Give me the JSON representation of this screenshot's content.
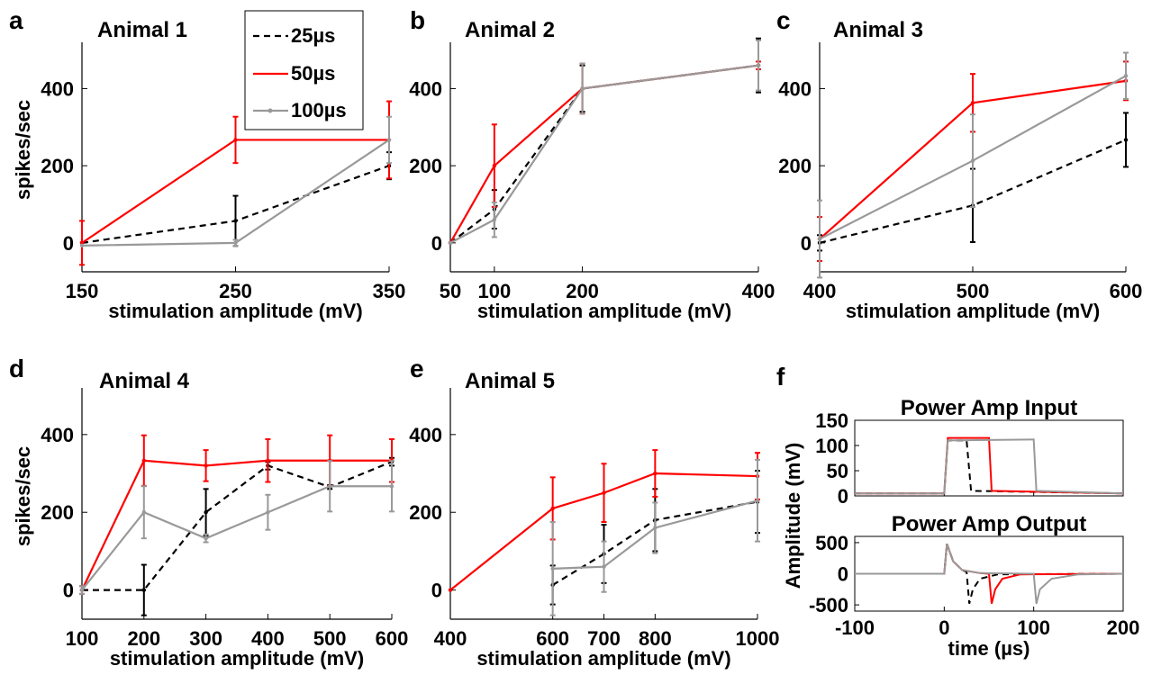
{
  "series_styles": {
    "25µs": {
      "color": "#000000",
      "dash": "7,5"
    },
    "50µs": {
      "color": "#ff0000",
      "dash": ""
    },
    "100µs": {
      "color": "#999999",
      "dash": ""
    }
  },
  "legend": [
    "25µs",
    "50µs",
    "100µs"
  ],
  "chart_data": [
    {
      "panel_label": "a",
      "title": "Animal 1",
      "type": "line",
      "xlabel": "stimulation amplitude (mV)",
      "ylabel": "spikes/sec",
      "xlim": [
        150,
        350
      ],
      "ylim": [
        -75,
        520
      ],
      "xticks": [
        150,
        250,
        350
      ],
      "yticks": [
        0,
        200,
        400
      ],
      "series": [
        {
          "name": "25µs",
          "x": [
            150,
            250,
            350
          ],
          "y": [
            0,
            57,
            200
          ],
          "err": [
            0,
            65,
            35
          ]
        },
        {
          "name": "50µs",
          "x": [
            150,
            250,
            350
          ],
          "y": [
            0,
            267,
            267
          ],
          "err": [
            57,
            60,
            100
          ]
        },
        {
          "name": "100µs",
          "x": [
            150,
            250,
            350
          ],
          "y": [
            -7,
            0,
            267
          ],
          "err": [
            0,
            8,
            60
          ]
        }
      ]
    },
    {
      "panel_label": "b",
      "title": "Animal 2",
      "type": "line",
      "xlabel": "stimulation amplitude (mV)",
      "ylabel": "",
      "xlim": [
        50,
        400
      ],
      "ylim": [
        -75,
        520
      ],
      "xticks": [
        50,
        100,
        200,
        400
      ],
      "yticks": [
        0,
        200,
        400
      ],
      "series": [
        {
          "name": "25µs",
          "x": [
            50,
            100,
            200,
            400
          ],
          "y": [
            0,
            87,
            400,
            460
          ],
          "err": [
            0,
            50,
            60,
            70
          ]
        },
        {
          "name": "50µs",
          "x": [
            50,
            100,
            200,
            400
          ],
          "y": [
            0,
            200,
            400,
            460
          ],
          "err": [
            0,
            107,
            65,
            10
          ]
        },
        {
          "name": "100µs",
          "x": [
            50,
            100,
            200,
            400
          ],
          "y": [
            0,
            60,
            400,
            460
          ],
          "err": [
            0,
            45,
            65,
            65
          ]
        }
      ]
    },
    {
      "panel_label": "c",
      "title": "Animal 3",
      "type": "line",
      "xlabel": "stimulation amplitude (mV)",
      "ylabel": "",
      "xlim": [
        400,
        600
      ],
      "ylim": [
        -75,
        520
      ],
      "xticks": [
        400,
        500,
        600
      ],
      "yticks": [
        0,
        200,
        400
      ],
      "series": [
        {
          "name": "25µs",
          "x": [
            400,
            500,
            600
          ],
          "y": [
            0,
            97,
            267
          ],
          "err": [
            20,
            95,
            70
          ]
        },
        {
          "name": "50µs",
          "x": [
            400,
            500,
            600
          ],
          "y": [
            10,
            363,
            420
          ],
          "err": [
            57,
            75,
            50
          ]
        },
        {
          "name": "100µs",
          "x": [
            400,
            500,
            600
          ],
          "y": [
            10,
            213,
            433
          ],
          "err": [
            100,
            120,
            60
          ]
        }
      ]
    },
    {
      "panel_label": "d",
      "title": "Animal 4",
      "type": "line",
      "xlabel": "stimulation amplitude (mV)",
      "ylabel": "spikes/sec",
      "xlim": [
        100,
        600
      ],
      "ylim": [
        -75,
        520
      ],
      "xticks": [
        100,
        200,
        300,
        400,
        500,
        600
      ],
      "yticks": [
        0,
        200,
        400
      ],
      "series": [
        {
          "name": "25µs",
          "x": [
            100,
            200,
            300,
            400,
            500,
            600
          ],
          "y": [
            0,
            0,
            200,
            320,
            265,
            330
          ],
          "err": [
            10,
            65,
            60,
            10,
            5,
            10
          ]
        },
        {
          "name": "50µs",
          "x": [
            100,
            200,
            300,
            400,
            500,
            600
          ],
          "y": [
            0,
            333,
            320,
            333,
            333,
            333
          ],
          "err": [
            10,
            65,
            40,
            55,
            65,
            55
          ]
        },
        {
          "name": "100µs",
          "x": [
            100,
            200,
            300,
            400,
            500,
            600
          ],
          "y": [
            0,
            200,
            133,
            200,
            267,
            267
          ],
          "err": [
            10,
            67,
            10,
            45,
            65,
            65
          ]
        }
      ]
    },
    {
      "panel_label": "e",
      "title": "Animal 5",
      "type": "line",
      "xlabel": "stimulation amplitude (mV)",
      "ylabel": "",
      "xlim": [
        400,
        1000
      ],
      "ylim": [
        -75,
        520
      ],
      "xticks": [
        400,
        600,
        700,
        800,
        1000
      ],
      "yticks": [
        0,
        200,
        400
      ],
      "series": [
        {
          "name": "25µs",
          "x": [
            600,
            700,
            800,
            1000
          ],
          "y": [
            13,
            93,
            180,
            227
          ],
          "err": [
            50,
            75,
            80,
            80
          ]
        },
        {
          "name": "50µs",
          "x": [
            400,
            600,
            700,
            800,
            1000
          ],
          "y": [
            0,
            210,
            250,
            300,
            293
          ],
          "err": [
            0,
            80,
            75,
            60,
            60
          ]
        },
        {
          "name": "100µs",
          "x": [
            600,
            700,
            800,
            1000
          ],
          "y": [
            55,
            60,
            160,
            230
          ],
          "err": [
            120,
            65,
            65,
            105
          ]
        }
      ]
    },
    {
      "panel_label": "f",
      "type": "line",
      "xlabel": "time (µs)",
      "ylabel": "Amplitude (mV)",
      "xlim": [
        -100,
        200
      ],
      "xticks": [
        -100,
        0,
        100,
        200
      ],
      "subplots": [
        {
          "title": "Power Amp Input",
          "ylim": [
            0,
            150
          ],
          "yticks": [
            0,
            50,
            100,
            150
          ],
          "series": [
            {
              "name": "25µs",
              "x": [
                -100,
                0,
                4,
                25,
                30,
                200
              ],
              "y": [
                5,
                5,
                110,
                110,
                10,
                5
              ]
            },
            {
              "name": "50µs",
              "x": [
                -100,
                0,
                4,
                50,
                53,
                200
              ],
              "y": [
                5,
                5,
                115,
                115,
                10,
                5
              ]
            },
            {
              "name": "100µs",
              "x": [
                -100,
                0,
                4,
                100,
                103,
                200
              ],
              "y": [
                5,
                5,
                110,
                112,
                10,
                5
              ]
            }
          ]
        },
        {
          "title": "Power Amp Output",
          "ylim": [
            -600,
            600
          ],
          "yticks": [
            -500,
            0,
            500
          ],
          "series": [
            {
              "name": "25µs",
              "x": [
                -100,
                0,
                3,
                10,
                20,
                25,
                28,
                32,
                40,
                60,
                200
              ],
              "y": [
                0,
                0,
                480,
                200,
                60,
                30,
                -480,
                -250,
                -80,
                -10,
                0
              ]
            },
            {
              "name": "50µs",
              "x": [
                -100,
                0,
                3,
                10,
                20,
                40,
                50,
                53,
                57,
                65,
                85,
                200
              ],
              "y": [
                0,
                0,
                480,
                200,
                60,
                10,
                0,
                -480,
                -250,
                -80,
                -10,
                0
              ]
            },
            {
              "name": "100µs",
              "x": [
                -100,
                0,
                3,
                10,
                20,
                40,
                100,
                103,
                107,
                120,
                150,
                200
              ],
              "y": [
                0,
                0,
                480,
                200,
                60,
                10,
                0,
                -480,
                -250,
                -80,
                -10,
                0
              ]
            }
          ]
        }
      ]
    }
  ]
}
